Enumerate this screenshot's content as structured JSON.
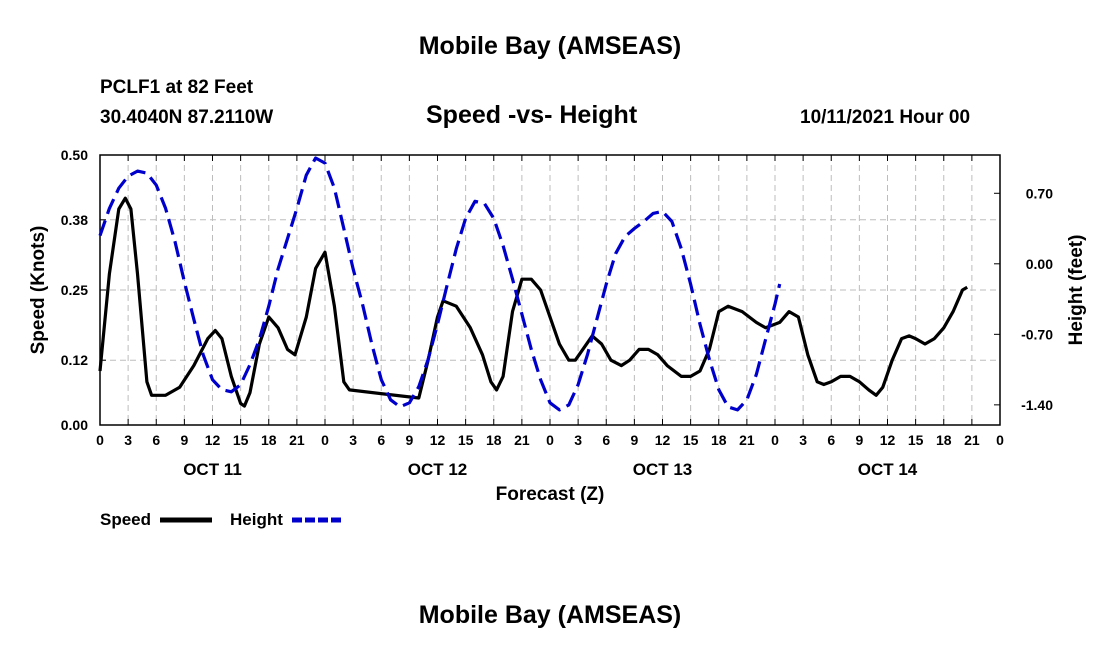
{
  "page": {
    "title_top": "Mobile Bay (AMSEAS)",
    "title_bottom": "Mobile Bay (AMSEAS)",
    "station_line": "PCLF1 at 82 Feet",
    "coords_line": "30.4040N  87.2110W",
    "subtitle": "Speed -vs- Height",
    "date_line": "10/11/2021 Hour 00"
  },
  "legend": {
    "speed_label": "Speed",
    "height_label": "Height"
  },
  "colors": {
    "speed": "#000000",
    "height": "#0000cc",
    "grid": "#bdbdbd"
  },
  "chart_data": {
    "type": "line",
    "title": "Speed -vs- Height",
    "xlabel": "Forecast (Z)",
    "ylabel_left": "Speed (Knots)",
    "ylabel_right": "Height (feet)",
    "x_range_hours": [
      0,
      96
    ],
    "ylim_left": [
      0,
      0.5
    ],
    "ylim_right": [
      -1.6,
      1.08
    ],
    "left_ticks": [
      0.0,
      0.12,
      0.25,
      0.38,
      0.5
    ],
    "left_tick_labels": [
      "0.00",
      "0.12",
      "0.25",
      "0.38",
      "0.50"
    ],
    "right_ticks": [
      -1.4,
      -0.7,
      0.0,
      0.7
    ],
    "right_tick_labels": [
      "-1.40",
      "-0.70",
      "0.00",
      "0.70"
    ],
    "x_ticks": [
      0,
      3,
      6,
      9,
      12,
      15,
      18,
      21,
      24,
      27,
      30,
      33,
      36,
      39,
      42,
      45,
      48,
      51,
      54,
      57,
      60,
      63,
      66,
      69,
      72,
      75,
      78,
      81,
      84,
      87,
      90,
      93,
      96
    ],
    "x_tick_labels": [
      "0",
      "3",
      "6",
      "9",
      "12",
      "15",
      "18",
      "21",
      "0",
      "3",
      "6",
      "9",
      "12",
      "15",
      "18",
      "21",
      "0",
      "3",
      "6",
      "9",
      "12",
      "15",
      "18",
      "21",
      "0",
      "3",
      "6",
      "9",
      "12",
      "15",
      "18",
      "21",
      "0"
    ],
    "day_labels": [
      {
        "label": "OCT 11",
        "hour": 12
      },
      {
        "label": "OCT 12",
        "hour": 36
      },
      {
        "label": "OCT 13",
        "hour": 60
      },
      {
        "label": "OCT 14",
        "hour": 84
      }
    ],
    "series": [
      {
        "name": "Speed",
        "axis": "left",
        "style": "solid",
        "points": [
          [
            0,
            0.1
          ],
          [
            1,
            0.28
          ],
          [
            2,
            0.4
          ],
          [
            2.7,
            0.42
          ],
          [
            3.3,
            0.4
          ],
          [
            4,
            0.28
          ],
          [
            5,
            0.08
          ],
          [
            5.5,
            0.055
          ],
          [
            7,
            0.055
          ],
          [
            8.5,
            0.07
          ],
          [
            10,
            0.11
          ],
          [
            11.5,
            0.16
          ],
          [
            12.3,
            0.175
          ],
          [
            13,
            0.16
          ],
          [
            14,
            0.09
          ],
          [
            15,
            0.04
          ],
          [
            15.4,
            0.035
          ],
          [
            16,
            0.06
          ],
          [
            17,
            0.15
          ],
          [
            18,
            0.2
          ],
          [
            19,
            0.18
          ],
          [
            20,
            0.14
          ],
          [
            20.8,
            0.13
          ],
          [
            22,
            0.2
          ],
          [
            23,
            0.29
          ],
          [
            24,
            0.32
          ],
          [
            25,
            0.22
          ],
          [
            26,
            0.08
          ],
          [
            26.6,
            0.065
          ],
          [
            34,
            0.05
          ],
          [
            35,
            0.12
          ],
          [
            36,
            0.2
          ],
          [
            36.6,
            0.23
          ],
          [
            38,
            0.22
          ],
          [
            39.5,
            0.18
          ],
          [
            40.8,
            0.13
          ],
          [
            41.7,
            0.08
          ],
          [
            42.3,
            0.065
          ],
          [
            43,
            0.09
          ],
          [
            44,
            0.21
          ],
          [
            45,
            0.27
          ],
          [
            46,
            0.27
          ],
          [
            47,
            0.25
          ],
          [
            48,
            0.2
          ],
          [
            49,
            0.15
          ],
          [
            50,
            0.12
          ],
          [
            50.7,
            0.12
          ],
          [
            51.5,
            0.14
          ],
          [
            52.5,
            0.165
          ],
          [
            53.5,
            0.15
          ],
          [
            54.5,
            0.12
          ],
          [
            55.6,
            0.11
          ],
          [
            56.5,
            0.12
          ],
          [
            57.5,
            0.14
          ],
          [
            58.5,
            0.14
          ],
          [
            59.5,
            0.13
          ],
          [
            60.5,
            0.11
          ],
          [
            62,
            0.09
          ],
          [
            63,
            0.09
          ],
          [
            64,
            0.1
          ],
          [
            65,
            0.14
          ],
          [
            66,
            0.21
          ],
          [
            67,
            0.22
          ],
          [
            68.5,
            0.21
          ],
          [
            70,
            0.19
          ],
          [
            71,
            0.18
          ],
          [
            72.5,
            0.19
          ],
          [
            73.5,
            0.21
          ],
          [
            74.5,
            0.2
          ],
          [
            75.5,
            0.13
          ],
          [
            76.5,
            0.08
          ],
          [
            77.2,
            0.075
          ],
          [
            78,
            0.08
          ],
          [
            79,
            0.09
          ],
          [
            80,
            0.09
          ],
          [
            81,
            0.08
          ],
          [
            82,
            0.065
          ],
          [
            82.8,
            0.055
          ],
          [
            83.5,
            0.07
          ],
          [
            84.5,
            0.12
          ],
          [
            85.5,
            0.16
          ],
          [
            86.3,
            0.165
          ],
          [
            87,
            0.16
          ],
          [
            88,
            0.15
          ],
          [
            89,
            0.16
          ],
          [
            90,
            0.18
          ],
          [
            91,
            0.21
          ],
          [
            92,
            0.25
          ],
          [
            92.5,
            0.255
          ]
        ]
      },
      {
        "name": "Height",
        "axis": "right",
        "style": "dashed",
        "points": [
          [
            0,
            0.28
          ],
          [
            1,
            0.55
          ],
          [
            2,
            0.75
          ],
          [
            3,
            0.87
          ],
          [
            4,
            0.92
          ],
          [
            5,
            0.9
          ],
          [
            6,
            0.78
          ],
          [
            7,
            0.55
          ],
          [
            8,
            0.22
          ],
          [
            9,
            -0.18
          ],
          [
            10,
            -0.55
          ],
          [
            11,
            -0.9
          ],
          [
            12,
            -1.15
          ],
          [
            13,
            -1.25
          ],
          [
            14,
            -1.27
          ],
          [
            15,
            -1.2
          ],
          [
            16,
            -1.0
          ],
          [
            17,
            -0.75
          ],
          [
            18,
            -0.42
          ],
          [
            19,
            -0.05
          ],
          [
            20,
            0.25
          ],
          [
            21,
            0.55
          ],
          [
            22,
            0.88
          ],
          [
            23,
            1.05
          ],
          [
            24,
            1.0
          ],
          [
            25,
            0.75
          ],
          [
            26,
            0.35
          ],
          [
            27,
            -0.05
          ],
          [
            28,
            -0.4
          ],
          [
            29,
            -0.8
          ],
          [
            30,
            -1.15
          ],
          [
            31,
            -1.35
          ],
          [
            32,
            -1.42
          ],
          [
            33,
            -1.38
          ],
          [
            34,
            -1.22
          ],
          [
            35,
            -0.95
          ],
          [
            36,
            -0.6
          ],
          [
            37,
            -0.22
          ],
          [
            38,
            0.15
          ],
          [
            39,
            0.45
          ],
          [
            40,
            0.62
          ],
          [
            41,
            0.6
          ],
          [
            42,
            0.45
          ],
          [
            43,
            0.18
          ],
          [
            44,
            -0.15
          ],
          [
            45,
            -0.5
          ],
          [
            46,
            -0.85
          ],
          [
            47,
            -1.15
          ],
          [
            48,
            -1.38
          ],
          [
            49,
            -1.45
          ],
          [
            50,
            -1.4
          ],
          [
            51,
            -1.2
          ],
          [
            52,
            -0.9
          ],
          [
            53,
            -0.55
          ],
          [
            54,
            -0.2
          ],
          [
            55,
            0.1
          ],
          [
            56,
            0.27
          ],
          [
            57,
            0.35
          ],
          [
            58,
            0.42
          ],
          [
            59,
            0.5
          ],
          [
            60,
            0.52
          ],
          [
            61,
            0.42
          ],
          [
            62,
            0.15
          ],
          [
            63,
            -0.2
          ],
          [
            64,
            -0.6
          ],
          [
            65,
            -0.95
          ],
          [
            66,
            -1.25
          ],
          [
            67,
            -1.42
          ],
          [
            68,
            -1.45
          ],
          [
            69,
            -1.35
          ],
          [
            70,
            -1.1
          ],
          [
            71,
            -0.75
          ],
          [
            72,
            -0.4
          ],
          [
            72.5,
            -0.2
          ]
        ]
      }
    ]
  }
}
